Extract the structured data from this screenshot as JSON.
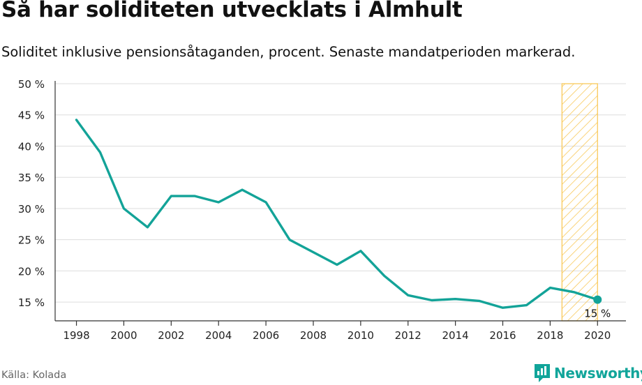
{
  "header": {
    "title": "Så har soliditeten utvecklats i Almhult",
    "subtitle": "Soliditet inklusive pensionsåtaganden, procent. Senaste mandatperioden markerad."
  },
  "footer": {
    "source": "Källa: Kolada",
    "brand": "Newsworthy",
    "brand_icon": "newsworthy-logo-icon"
  },
  "colors": {
    "line": "#13a398",
    "highlight_stroke": "#f9c95a",
    "grid": "#dddddd",
    "axis": "#333333"
  },
  "chart_data": {
    "type": "line",
    "title": "Så har soliditeten utvecklats i Almhult",
    "subtitle": "Soliditet inklusive pensionsåtaganden, procent. Senaste mandatperioden markerad.",
    "xlabel": "",
    "ylabel": "",
    "x": [
      1998,
      1999,
      2000,
      2001,
      2002,
      2003,
      2004,
      2005,
      2006,
      2007,
      2008,
      2009,
      2010,
      2011,
      2012,
      2013,
      2014,
      2015,
      2016,
      2017,
      2018,
      2019,
      2020
    ],
    "series": [
      {
        "values": [
          44.2,
          39.0,
          30.0,
          27.0,
          32.0,
          32.0,
          31.0,
          33.0,
          31.0,
          25.0,
          23.0,
          21.0,
          23.2,
          19.2,
          16.1,
          15.3,
          15.5,
          15.2,
          14.1,
          14.5,
          17.3,
          16.6,
          15.4
        ]
      }
    ],
    "xlim": [
      1997.1,
      2021.2
    ],
    "ylim": [
      12,
      50
    ],
    "yticks": [
      15,
      20,
      25,
      30,
      35,
      40,
      45,
      50
    ],
    "ytick_labels": [
      "15 %",
      "20 %",
      "25 %",
      "30 %",
      "35 %",
      "40 %",
      "45 %",
      "50 %"
    ],
    "xticks": [
      1998,
      2000,
      2002,
      2004,
      2006,
      2008,
      2010,
      2012,
      2014,
      2016,
      2018,
      2020
    ],
    "xtick_labels": [
      "1998",
      "2000",
      "2002",
      "2004",
      "2006",
      "2008",
      "2010",
      "2012",
      "2014",
      "2016",
      "2018",
      "2020"
    ],
    "highlight_period": [
      2018.5,
      2020
    ],
    "end_label": "15 %",
    "grid": true,
    "legend": "none"
  }
}
